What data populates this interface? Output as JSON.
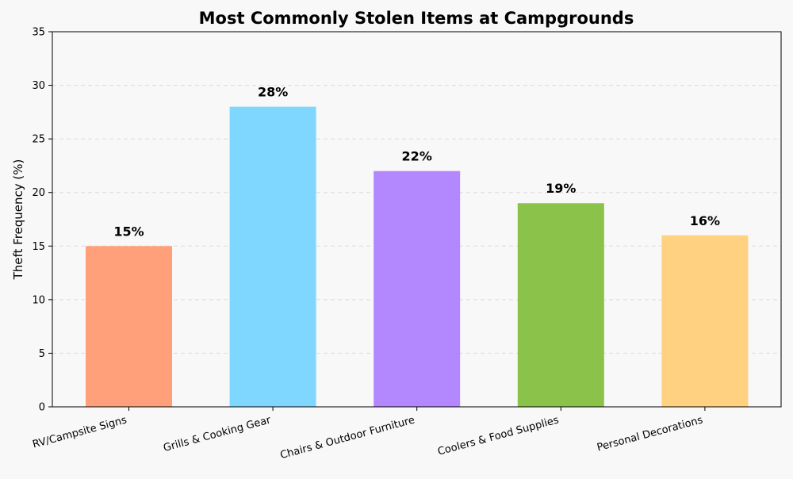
{
  "chart_data": {
    "type": "bar",
    "title": "Most Commonly Stolen Items at Campgrounds",
    "xlabel": "",
    "ylabel": "Theft Frequency (%)",
    "categories": [
      "RV/Campsite Signs",
      "Grills & Cooking Gear",
      "Chairs & Outdoor Furniture",
      "Coolers & Food Supplies",
      "Personal Decorations"
    ],
    "values": [
      15,
      28,
      22,
      19,
      16
    ],
    "data_labels": [
      "15%",
      "28%",
      "22%",
      "19%",
      "16%"
    ],
    "colors": [
      "#FFA07A",
      "#7FD7FF",
      "#B388FF",
      "#8BC34A",
      "#FFD180"
    ],
    "ylim": [
      0,
      35
    ],
    "yticks": [
      0,
      5,
      10,
      15,
      20,
      25,
      30,
      35
    ],
    "grid": "y-dashed",
    "legend": "none",
    "background": "#f8f8f8"
  }
}
